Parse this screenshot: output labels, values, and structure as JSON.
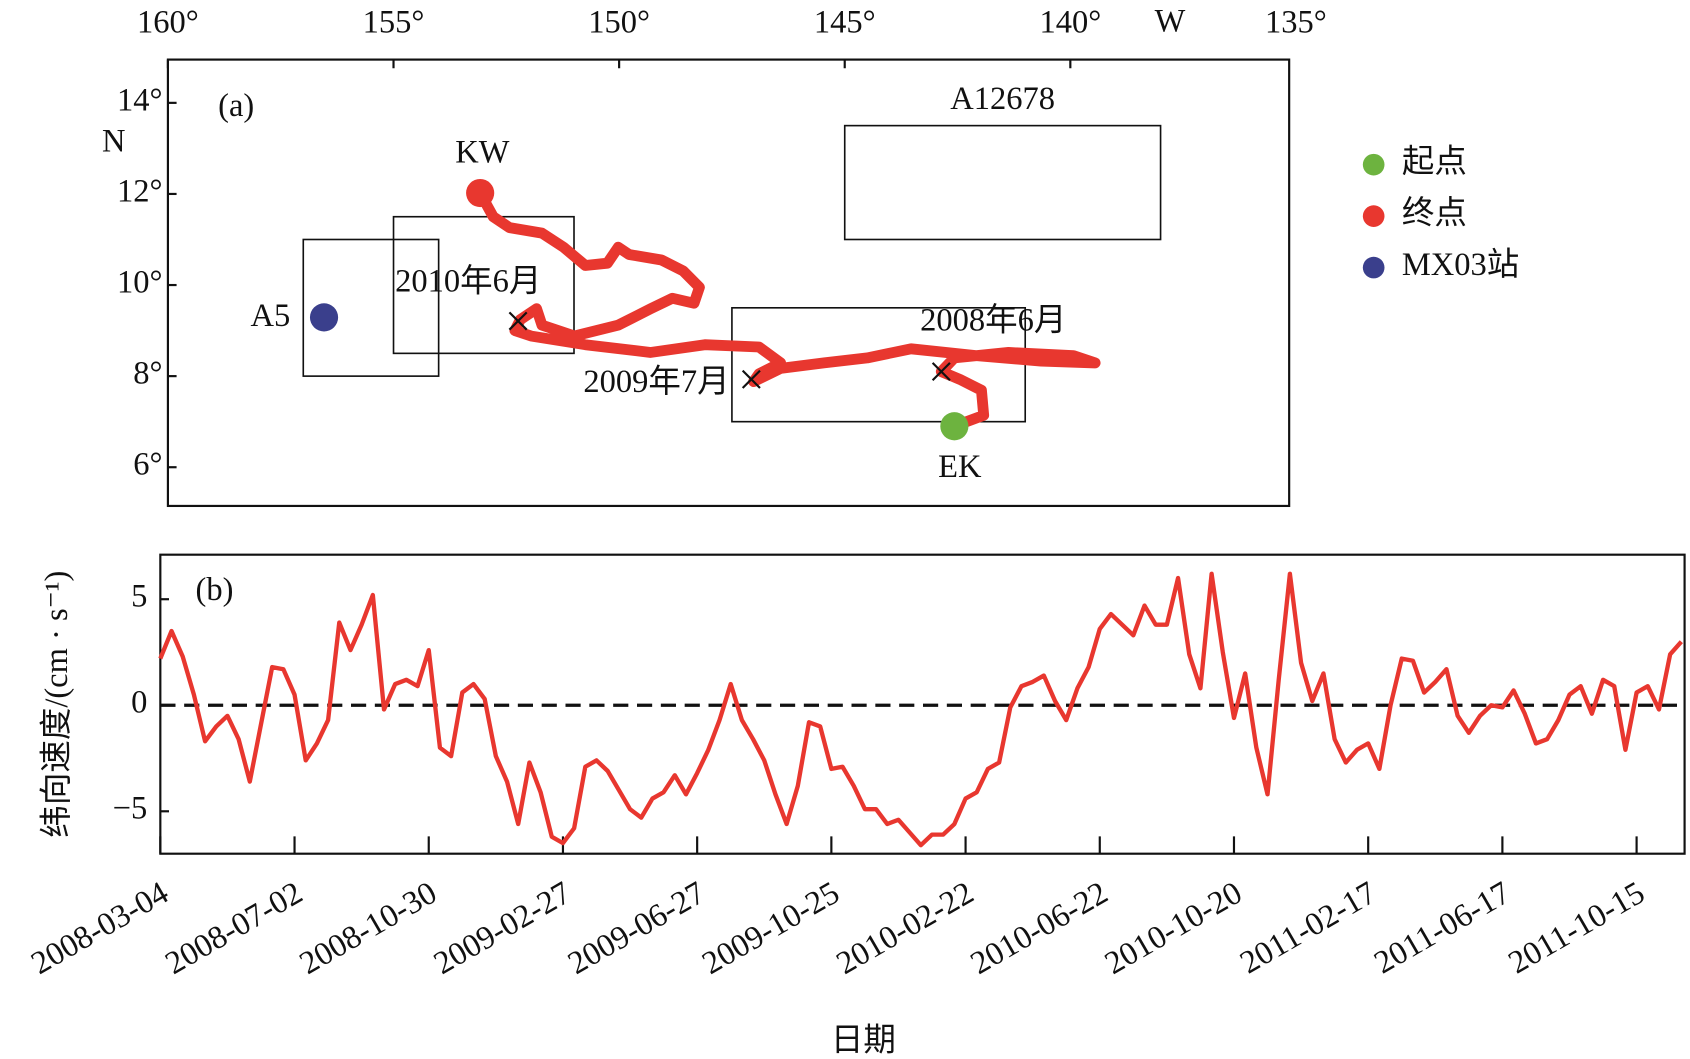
{
  "chart_data": [
    {
      "type": "map",
      "panel_label": "(a)",
      "x_label": "W",
      "y_label": "N",
      "xlim": [
        160,
        135.15
      ],
      "ylim": [
        5.15,
        14.95
      ],
      "xticks": [
        {
          "value": 160,
          "label": "160°"
        },
        {
          "value": 155,
          "label": "155°"
        },
        {
          "value": 150,
          "label": "150°"
        },
        {
          "value": 145,
          "label": "145°"
        },
        {
          "value": 140,
          "label": "140°"
        },
        {
          "value": 135,
          "label": "135°"
        }
      ],
      "yticks": [
        {
          "value": 6,
          "label": "6°"
        },
        {
          "value": 8,
          "label": "8°"
        },
        {
          "value": 10,
          "label": "10°"
        },
        {
          "value": 12,
          "label": "12°"
        },
        {
          "value": 14,
          "label": "14°"
        }
      ],
      "boxes": [
        {
          "label": "A5",
          "xlim": [
            157.0,
            154.0
          ],
          "ylim": [
            8.0,
            11.0
          ]
        },
        {
          "xlim": [
            155.0,
            151.0
          ],
          "ylim": [
            8.5,
            11.5
          ]
        },
        {
          "xlim": [
            147.5,
            141.0
          ],
          "ylim": [
            7.0,
            9.5
          ]
        },
        {
          "label": "A12678",
          "xlim": [
            145.0,
            138.0
          ],
          "ylim": [
            11.0,
            13.5
          ]
        }
      ],
      "track": {
        "color": "#e8372f",
        "x": [
          142.57,
          141.92,
          141.97,
          142.45,
          142.86,
          142.57,
          141.37,
          139.93,
          139.45,
          140.65,
          142.09,
          143.53,
          144.5,
          145.46,
          146.42,
          147.02,
          146.9,
          146.42,
          146.9,
          148.1,
          149.3,
          150.75,
          151.95,
          152.31,
          152.19,
          151.83,
          151.71,
          150.99,
          150.02,
          149.3,
          148.82,
          148.34,
          148.22,
          148.58,
          149.06,
          149.78,
          150.02,
          150.26,
          150.75,
          151.23,
          151.71,
          152.43,
          152.79,
          153.08
        ],
        "y": [
          6.9,
          7.14,
          7.69,
          7.93,
          8.1,
          8.4,
          8.52,
          8.45,
          8.29,
          8.33,
          8.45,
          8.6,
          8.4,
          8.29,
          8.17,
          7.88,
          8.05,
          8.29,
          8.64,
          8.69,
          8.52,
          8.69,
          8.88,
          9.0,
          9.24,
          9.48,
          9.12,
          8.88,
          9.12,
          9.48,
          9.71,
          9.6,
          9.95,
          10.31,
          10.55,
          10.67,
          10.83,
          10.48,
          10.43,
          10.83,
          11.14,
          11.26,
          11.5,
          12.02
        ]
      },
      "markers": [
        {
          "label": "2008年6月",
          "x": 142.86,
          "y": 8.1
        },
        {
          "label": "2009年7月",
          "x": 147.07,
          "y": 7.93
        },
        {
          "label": "2010年6月",
          "x": 152.24,
          "y": 9.21
        }
      ],
      "points": [
        {
          "name": "起点",
          "color": "#6db33f",
          "x": 142.57,
          "y": 6.9,
          "label": "EK"
        },
        {
          "name": "终点",
          "color": "#e8372f",
          "x": 153.08,
          "y": 12.02,
          "label": "KW"
        },
        {
          "name": "MX03站",
          "color": "#3a3f8c",
          "x": 156.54,
          "y": 9.29
        }
      ],
      "legend": "right"
    },
    {
      "type": "line",
      "panel_label": "(b)",
      "x_label": "日期",
      "y_label": "纬向速度/(cm · s⁻¹)",
      "categories": [
        "2008-03-04",
        null,
        null,
        null,
        null,
        null,
        null,
        null,
        null,
        null,
        null,
        null,
        "2008-07-02",
        null,
        null,
        null,
        null,
        null,
        null,
        null,
        null,
        null,
        null,
        null,
        "2008-10-30",
        null,
        null,
        null,
        null,
        null,
        null,
        null,
        null,
        null,
        null,
        null,
        "2009-02-27",
        null,
        null,
        null,
        null,
        null,
        null,
        null,
        null,
        null,
        null,
        null,
        "2009-06-27",
        null,
        null,
        null,
        null,
        null,
        null,
        null,
        null,
        null,
        null,
        null,
        "2009-10-25",
        null,
        null,
        null,
        null,
        null,
        null,
        null,
        null,
        null,
        null,
        null,
        "2010-02-22",
        null,
        null,
        null,
        null,
        null,
        null,
        null,
        null,
        null,
        null,
        null,
        "2010-06-22",
        null,
        null,
        null,
        null,
        null,
        null,
        null,
        null,
        null,
        null,
        null,
        "2010-10-20",
        null,
        null,
        null,
        null,
        null,
        null,
        null,
        null,
        null,
        null,
        null,
        "2011-02-17",
        null,
        null,
        null,
        null,
        null,
        null,
        null,
        null,
        null,
        null,
        null,
        "2011-06-17",
        null,
        null,
        null,
        null,
        null,
        null,
        null,
        null,
        null,
        null,
        null,
        "2011-10-15",
        null,
        null,
        null,
        null
      ],
      "values": [
        2.2,
        3.5,
        2.3,
        0.5,
        -1.7,
        -1.0,
        -0.5,
        -1.6,
        -3.6,
        -0.9,
        1.8,
        1.7,
        0.5,
        -2.6,
        -1.8,
        -0.7,
        3.9,
        2.6,
        3.8,
        5.2,
        -0.2,
        1.0,
        1.2,
        0.9,
        2.6,
        -2.0,
        -2.4,
        0.6,
        1.0,
        0.3,
        -2.4,
        -3.6,
        -5.6,
        -2.7,
        -4.1,
        -6.2,
        -6.5,
        -5.8,
        -2.9,
        -2.6,
        -3.1,
        -4.0,
        -4.9,
        -5.3,
        -4.4,
        -4.1,
        -3.3,
        -4.2,
        -3.2,
        -2.1,
        -0.7,
        1.0,
        -0.7,
        -1.6,
        -2.6,
        -4.2,
        -5.6,
        -3.8,
        -0.8,
        -1.0,
        -3.0,
        -2.9,
        -3.8,
        -4.9,
        -4.9,
        -5.6,
        -5.4,
        -6.0,
        -6.6,
        -6.1,
        -6.1,
        -5.6,
        -4.4,
        -4.1,
        -3.0,
        -2.7,
        -0.1,
        0.9,
        1.1,
        1.4,
        0.2,
        -0.7,
        0.8,
        1.8,
        3.6,
        4.3,
        3.8,
        3.3,
        4.7,
        3.8,
        3.8,
        6.0,
        2.4,
        0.8,
        6.2,
        2.5,
        -0.6,
        1.5,
        -2.0,
        -4.2,
        1.2,
        6.2,
        2.0,
        0.2,
        1.5,
        -1.6,
        -2.7,
        -2.1,
        -1.8,
        -3.0,
        0.0,
        2.2,
        2.1,
        0.6,
        1.1,
        1.7,
        -0.5,
        -1.3,
        -0.5,
        0.0,
        -0.1,
        0.7,
        -0.4,
        -1.8,
        -1.6,
        -0.7,
        0.5,
        0.9,
        -0.4,
        1.2,
        0.9,
        -2.1,
        0.6,
        0.9,
        -0.2,
        2.4,
        3.0
      ],
      "color": "#e8372f",
      "ylim": [
        -7.0,
        7.1
      ],
      "yticks": [
        {
          "value": -5,
          "label": "−5"
        },
        0,
        5
      ],
      "reference_line": 0
    }
  ]
}
